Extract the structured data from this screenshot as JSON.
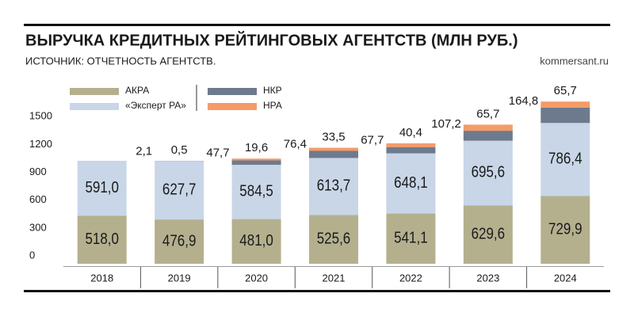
{
  "chart_data": {
    "type": "stacked_bar",
    "title": "ВЫРУЧКА КРЕДИТНЫХ РЕЙТИНГОВЫХ АГЕНТСТВ (МЛН РУБ.)",
    "subtitle": "ИСТОЧНИК: ОТЧЕТНОСТЬ АГЕНТСТВ.",
    "source": "kommersant.ru",
    "categories": [
      "2018",
      "2019",
      "2020",
      "2021",
      "2022",
      "2023",
      "2024"
    ],
    "series": [
      {
        "name": "АКРА",
        "color": "#b4b08e",
        "values": [
          518.0,
          476.9,
          481.0,
          525.6,
          541.1,
          629.6,
          729.9
        ],
        "value_labels": [
          "518,0",
          "476,9",
          "481,0",
          "525,6",
          "541,1",
          "629,6",
          "729,9"
        ]
      },
      {
        "name": "«Эксперт РА»",
        "color": "#c8d6e7",
        "values": [
          591.0,
          627.7,
          584.5,
          613.7,
          648.1,
          695.6,
          786.4
        ],
        "value_labels": [
          "591,0",
          "627,7",
          "584,5",
          "613,7",
          "648,1",
          "695,6",
          "786,4"
        ]
      },
      {
        "name": "НКР",
        "color": "#6d7a8e",
        "values": [
          null,
          2.1,
          47.7,
          76.4,
          67.7,
          107.2,
          164.8
        ],
        "value_labels": [
          null,
          "2,1",
          "47,7",
          "76,4",
          "67,7",
          "107,2",
          "164,8"
        ]
      },
      {
        "name": "НРА",
        "color": "#f59b68",
        "values": [
          null,
          0.5,
          19.6,
          33.5,
          40.4,
          65.7,
          65.7
        ],
        "value_labels": [
          null,
          "0,5",
          "19,6",
          "33,5",
          "40,4",
          "65,7",
          "65,7"
        ]
      }
    ],
    "ylim": [
      0,
      1800
    ],
    "yticks": [
      0,
      300,
      600,
      900,
      1200,
      1500
    ]
  }
}
